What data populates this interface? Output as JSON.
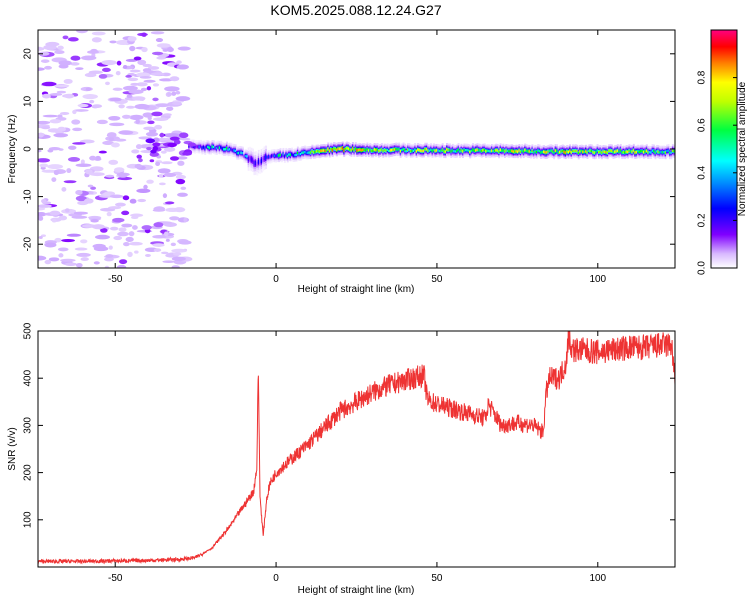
{
  "title": "KOM5.2025.088.12.24.G27",
  "chart_data": [
    {
      "type": "heatmap",
      "title": "KOM5.2025.088.12.24.G27",
      "xlabel": "Height of straight line (km)",
      "ylabel": "Frequency (Hz)",
      "xlim": [
        -74,
        124
      ],
      "ylim": [
        -25,
        25
      ],
      "xticks": [
        -50,
        0,
        50,
        100
      ],
      "yticks": [
        20,
        10,
        0,
        -10,
        -20
      ],
      "colorbar": {
        "label": "Normalized spectral amplitude",
        "range": [
          0,
          1
        ],
        "ticks": [
          0.0,
          0.2,
          0.4,
          0.6,
          0.8
        ],
        "colormap": [
          "#ffffff",
          "#c8a0ff",
          "#8000ff",
          "#0000ff",
          "#00ffff",
          "#00ff00",
          "#ffff00",
          "#ff8000",
          "#ff0000",
          "#ff0080"
        ]
      },
      "ridge": {
        "description": "noise speckle below about -27 km, signal ridge near 0 Hz from -27 km onward",
        "height_km": [
          -27,
          -20,
          -15,
          -10,
          -6,
          -4,
          0,
          5,
          10,
          15,
          20,
          30,
          50,
          70,
          90,
          110,
          124
        ],
        "frequency_hz": [
          0.5,
          0.3,
          0.0,
          -1.2,
          -3.2,
          -2.0,
          -1.5,
          -1.2,
          -0.8,
          -0.3,
          0.0,
          -0.2,
          -0.3,
          -0.4,
          -0.6,
          -0.5,
          -0.6
        ],
        "amplitude": [
          0.25,
          0.45,
          0.5,
          0.35,
          0.3,
          0.3,
          0.45,
          0.5,
          0.6,
          0.8,
          0.9,
          0.7,
          0.65,
          0.7,
          0.75,
          0.7,
          0.6
        ]
      }
    },
    {
      "type": "line",
      "xlabel": "Height of straight line (km)",
      "ylabel": "SNR (v/v)",
      "xlim": [
        -74,
        124
      ],
      "ylim": [
        0,
        500
      ],
      "xticks": [
        -50,
        0,
        50,
        100
      ],
      "yticks": [
        100,
        200,
        300,
        400,
        500
      ],
      "color": "#ee3333",
      "series": [
        {
          "x": [
            -74,
            -60,
            -50,
            -40,
            -30,
            -25,
            -20,
            -15,
            -10,
            -7,
            -6,
            -5.5,
            -5,
            -4,
            -3,
            -2,
            0,
            5,
            10,
            15,
            20,
            25,
            30,
            35,
            40,
            45,
            46,
            47,
            50,
            55,
            60,
            65,
            66,
            70,
            75,
            80,
            83,
            84,
            85,
            88,
            90,
            91,
            92,
            95,
            100,
            105,
            110,
            115,
            120,
            123,
            124
          ],
          "y": [
            12,
            12,
            13,
            14,
            16,
            20,
            40,
            80,
            130,
            160,
            210,
            420,
            150,
            65,
            140,
            175,
            200,
            230,
            260,
            295,
            330,
            350,
            370,
            385,
            395,
            405,
            405,
            355,
            345,
            335,
            325,
            315,
            345,
            300,
            305,
            300,
            285,
            370,
            400,
            400,
            430,
            490,
            460,
            460,
            455,
            460,
            465,
            465,
            470,
            470,
            390
          ]
        }
      ]
    }
  ]
}
